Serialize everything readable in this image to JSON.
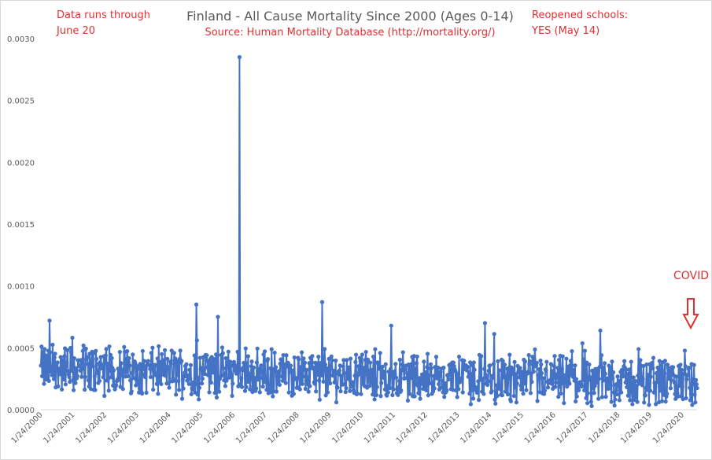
{
  "chart_data": {
    "type": "line",
    "title": "Finland - All Cause Mortality Since 2000 (Ages 0-14)",
    "subtitle": "Source: Human Mortality Database (http://mortality.org/)",
    "xlabel": "",
    "ylabel": "",
    "ylim": [
      0,
      0.003
    ],
    "yticks": [
      "0.0000",
      "0.0005",
      "0.0010",
      "0.0015",
      "0.0020",
      "0.0025",
      "0.0030"
    ],
    "xticks": [
      "1/24/2000",
      "1/24/2001",
      "1/24/2002",
      "1/24/2003",
      "1/24/2004",
      "1/24/2005",
      "1/24/2006",
      "1/24/2007",
      "1/24/2008",
      "1/24/2009",
      "1/24/2010",
      "1/24/2011",
      "1/24/2012",
      "1/24/2013",
      "1/24/2014",
      "1/24/2015",
      "1/24/2016",
      "1/24/2017",
      "1/24/2018",
      "1/24/2019",
      "1/24/2020"
    ],
    "grid": false,
    "series_color": "#4472c4",
    "notes": {
      "left": "Data runs through\nJune 20",
      "right": "Reopened schools:\nYES (May 14)",
      "covid_marker": "COVID"
    },
    "spikes": [
      {
        "date": "2000-04",
        "value": 0.00072
      },
      {
        "date": "2004-11",
        "value": 0.00085
      },
      {
        "date": "2005-07",
        "value": 0.00075
      },
      {
        "date": "2006-03",
        "value": 0.00285
      },
      {
        "date": "2008-10",
        "value": 0.00087
      },
      {
        "date": "2013-11",
        "value": 0.0007
      },
      {
        "date": "2017-06",
        "value": 0.00064
      }
    ],
    "approx_weekly_range": {
      "start": "2000-01",
      "end": "2020-06",
      "typical_min": 0.0,
      "typical_max": 0.0005
    }
  }
}
